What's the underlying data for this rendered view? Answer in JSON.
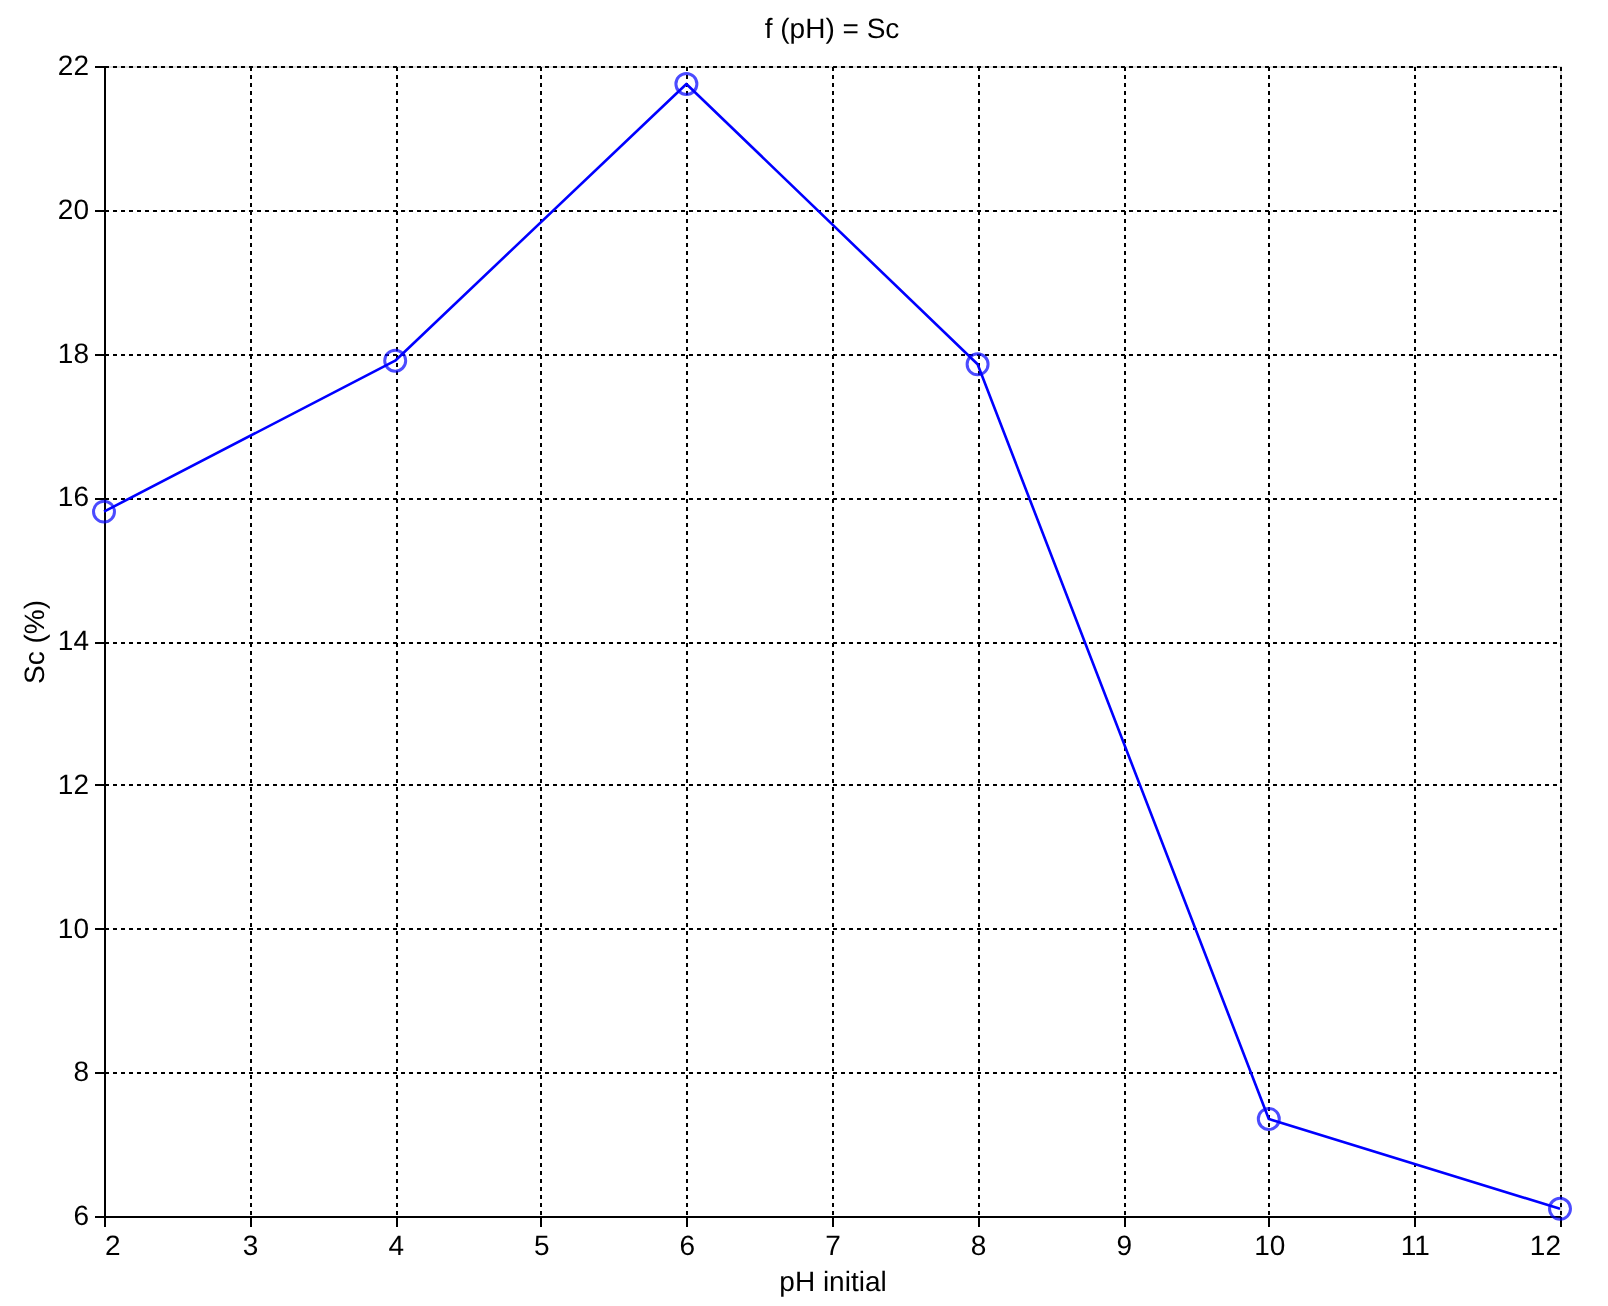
{
  "chart_data": {
    "type": "line",
    "title": "f (pH) = Sc",
    "xlabel": "pH initial",
    "ylabel": "Sc (%)",
    "x": [
      2,
      4,
      6,
      8,
      10,
      12
    ],
    "series": [
      {
        "color": "#0000ff",
        "values": [
          15.8,
          17.9,
          21.75,
          17.85,
          7.35,
          6.1
        ]
      }
    ],
    "xlim": [
      2,
      12
    ],
    "xticks": [
      2,
      3,
      4,
      5,
      6,
      7,
      8,
      9,
      10,
      11,
      12
    ],
    "ylim": [
      6,
      22
    ],
    "yticks": [
      6,
      8,
      10,
      12,
      14,
      16,
      18,
      20,
      22
    ],
    "grid": true,
    "marker": "circle",
    "line_style": "solid"
  }
}
